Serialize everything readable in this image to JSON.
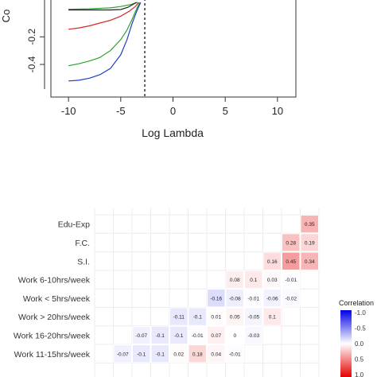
{
  "chart_data": [
    {
      "type": "line",
      "xlabel": "Log Lambda",
      "ylabel": "Co",
      "x_ticks": [
        "-10",
        "-5",
        "0",
        "5",
        "10"
      ],
      "y_ticks": [
        "-0.2",
        "-0.4"
      ],
      "xlim": [
        -11,
        11
      ],
      "ylim": [
        -0.55,
        0.05
      ],
      "vline_x": -2.7,
      "series": [
        {
          "color": "#2ca02c",
          "points": [
            [
              -10,
              0.0
            ],
            [
              -8,
              0.003
            ],
            [
              -6,
              0.01
            ],
            [
              -5,
              0.02
            ],
            [
              -4,
              0.035
            ],
            [
              -3.4,
              0.05
            ]
          ]
        },
        {
          "color": "#222222",
          "points": [
            [
              -10,
              -0.005
            ],
            [
              -8,
              -0.005
            ],
            [
              -6,
              -0.005
            ],
            [
              -5,
              -0.002
            ],
            [
              -4.3,
              0.015
            ],
            [
              -3.5,
              0.05
            ]
          ]
        },
        {
          "color": "#d62728",
          "points": [
            [
              -10,
              -0.145
            ],
            [
              -9,
              -0.135
            ],
            [
              -8,
              -0.12
            ],
            [
              -7,
              -0.1
            ],
            [
              -6,
              -0.08
            ],
            [
              -5,
              -0.05
            ],
            [
              -4.2,
              -0.015
            ],
            [
              -3.6,
              0.02
            ],
            [
              -3.3,
              0.05
            ]
          ]
        },
        {
          "color": "#2ca02c",
          "points": [
            [
              -10,
              -0.41
            ],
            [
              -9,
              -0.395
            ],
            [
              -8,
              -0.375
            ],
            [
              -7,
              -0.35
            ],
            [
              -6,
              -0.3
            ],
            [
              -5,
              -0.22
            ],
            [
              -4.4,
              -0.15
            ],
            [
              -3.9,
              -0.07
            ],
            [
              -3.5,
              0.0
            ],
            [
              -3.2,
              0.05
            ]
          ]
        },
        {
          "color": "#1f3fbf",
          "points": [
            [
              -10,
              -0.52
            ],
            [
              -9,
              -0.515
            ],
            [
              -8,
              -0.5
            ],
            [
              -7,
              -0.475
            ],
            [
              -6,
              -0.43
            ],
            [
              -5,
              -0.33
            ],
            [
              -4.4,
              -0.22
            ],
            [
              -3.9,
              -0.1
            ],
            [
              -3.5,
              -0.02
            ],
            [
              -3.1,
              0.05
            ]
          ]
        }
      ]
    },
    {
      "type": "heatmap",
      "rows": [
        "Edu-Exp",
        "F.C.",
        "S.I.",
        "Work 6-10hrs/week",
        "Work < 5hrs/week",
        "Work > 20hrs/week",
        "Work 16-20hrs/week",
        "Work 11-15hrs/week"
      ],
      "cells": [
        [
          "",
          "",
          "",
          "",
          "",
          "",
          "",
          "",
          "",
          "",
          "",
          "0.35"
        ],
        [
          "",
          "",
          "",
          "",
          "",
          "",
          "",
          "",
          "",
          "",
          "0.28",
          "0.19"
        ],
        [
          "",
          "",
          "",
          "",
          "",
          "",
          "",
          "",
          "",
          "0.16",
          "0.45",
          "0.34"
        ],
        [
          "",
          "",
          "",
          "",
          "",
          "",
          "",
          "0.08",
          "0.1",
          "0.03",
          "-0.01"
        ],
        [
          "",
          "",
          "",
          "",
          "",
          "",
          "-0.16",
          "-0.08",
          "-0.01",
          "-0.06",
          "-0.02"
        ],
        [
          "",
          "",
          "",
          "",
          "-0.11",
          "-0.1",
          "0.01",
          "0.05",
          "-0.05",
          "0.1"
        ],
        [
          "",
          "",
          "-0.07",
          "-0.1",
          "-0.1",
          "-0.01",
          "0.07",
          "0",
          "-0.03"
        ],
        [
          "",
          "-0.07",
          "-0.1",
          "-0.1",
          "0.02",
          "0.18",
          "0.04",
          "-0.01"
        ]
      ],
      "legend_title": "Correlation",
      "legend_ticks": [
        "-1.0",
        "-0.5",
        "0.0",
        "0.5",
        "1.0"
      ],
      "colors": {
        "negative": "#0000e6",
        "neutral": "#ffffff",
        "positive": "#e60000"
      }
    }
  ]
}
